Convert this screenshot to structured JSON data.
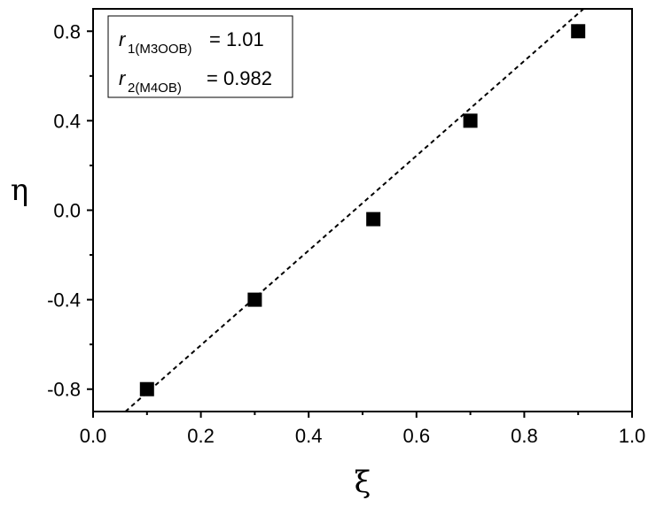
{
  "chart_data": {
    "type": "scatter",
    "x_label": "ξ",
    "y_label": "η",
    "x": [
      0.1,
      0.3,
      0.52,
      0.7,
      0.9
    ],
    "series": [
      {
        "color": "#000000",
        "values": [
          -0.8,
          -0.4,
          -0.04,
          0.4,
          0.8
        ]
      }
    ],
    "fit_line": {
      "x": [
        0.06,
        0.91
      ],
      "y": [
        -0.9,
        0.9
      ],
      "color": "#000000"
    },
    "xlim": [
      0,
      1
    ],
    "ylim": [
      -0.9,
      0.9
    ],
    "xticks": [
      {
        "value": 0,
        "label": "0.0"
      },
      0.2,
      0.4,
      0.6,
      0.8,
      {
        "value": 1,
        "label": "1.0"
      }
    ],
    "yticks": [
      0.8,
      0.4,
      {
        "value": 0,
        "label": "0.0"
      },
      -0.4,
      -0.8
    ],
    "xminorticks": [
      0.1,
      0.3,
      0.5,
      0.7,
      0.9
    ],
    "yminorticks": [
      0.6,
      0.2,
      -0.2,
      -0.6
    ],
    "annotations": [
      {
        "symbol": "r",
        "subscript": "1(M3OOB)",
        "text": "= 1.01"
      },
      {
        "symbol": "r",
        "subscript": "2(M4OB)",
        "text": "= 0.982"
      }
    ]
  }
}
